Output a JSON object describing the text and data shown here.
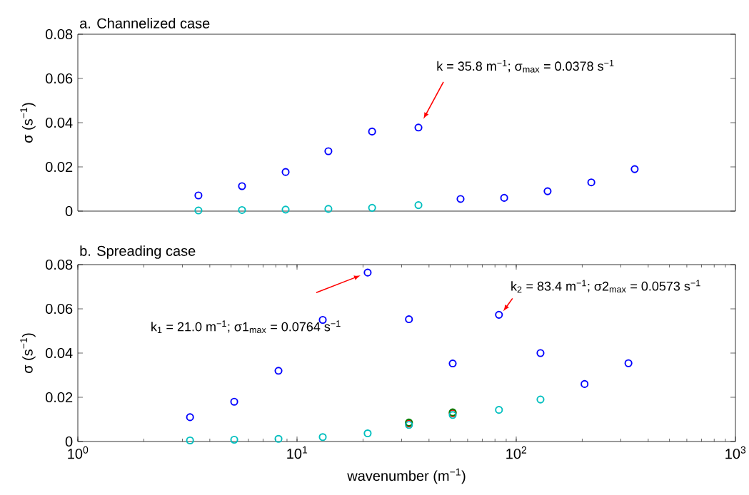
{
  "chart_data": [
    {
      "type": "scatter",
      "title": "a. Channelized case",
      "ylabel": "σ (s$^{−1}$)",
      "log": "x",
      "marker": "circle",
      "tick_labels": "y",
      "xlim": [
        1,
        1000
      ],
      "ylim": [
        0,
        0.08
      ],
      "yticks": [
        0,
        0.02,
        0.04,
        0.06,
        0.08
      ],
      "series": [
        {
          "color": "#0000ff",
          "x": [
            3.55,
            5.61,
            8.87,
            13.9,
            22.0,
            35.8,
            55.7,
            88.1,
            139,
            220,
            347
          ],
          "values": [
            0.0071,
            0.0113,
            0.0177,
            0.0271,
            0.036,
            0.0378,
            0.0055,
            0.006,
            0.009,
            0.013,
            0.019
          ]
        },
        {
          "color": "#00bfbf",
          "x": [
            3.55,
            5.61,
            8.87,
            13.9,
            22.0,
            35.8
          ],
          "values": [
            0.0003,
            0.0005,
            0.0007,
            0.001,
            0.0015,
            0.0027
          ]
        }
      ],
      "annotations": [
        "k = 35.8 m$^{−1}$; σ$_{max}$ = 0.0378 s$^{−1}$"
      ]
    },
    {
      "type": "scatter",
      "title": "b. Spreading case",
      "ylabel": "σ (s$^{−1}$)",
      "xlabel": "wavenumber (m$^{−1}$)",
      "log": "x",
      "marker": "circle",
      "xlim": [
        1,
        1000
      ],
      "ylim": [
        0,
        0.08
      ],
      "yticks": [
        0,
        0.02,
        0.04,
        0.06,
        0.08
      ],
      "xticks": [
        {
          "value": 1,
          "label": "10$^{0}$"
        },
        {
          "value": 10,
          "label": "10$^{1}$"
        },
        {
          "value": 100,
          "label": "10$^{2}$"
        },
        {
          "value": 1000,
          "label": "10$^{3}$"
        }
      ],
      "series": [
        {
          "color": "#0000ff",
          "x": [
            3.25,
            5.17,
            8.23,
            13.1,
            21.0,
            32.4,
            51.3,
            83.4,
            129,
            205,
            325
          ],
          "values": [
            0.011,
            0.018,
            0.032,
            0.055,
            0.0764,
            0.0553,
            0.0353,
            0.0573,
            0.04,
            0.026,
            0.0354
          ]
        },
        {
          "color": "#ff0000",
          "x": [
            32.4,
            51.3
          ],
          "values": [
            0.0082,
            0.0128
          ]
        },
        {
          "color": "#008000",
          "x": [
            32.4,
            51.3
          ],
          "values": [
            0.0086,
            0.0132
          ]
        },
        {
          "color": "#00bfbf",
          "x": [
            3.25,
            5.17,
            8.23,
            13.1,
            21.0,
            32.4,
            51.3,
            83.4,
            129
          ],
          "values": [
            0.0005,
            0.0008,
            0.0012,
            0.002,
            0.0037,
            0.0075,
            0.012,
            0.0143,
            0.019
          ]
        }
      ],
      "annotations": [
        "k$_{1}$ = 21.0 m$^{−1}$; σ1$_{max}$ = 0.0764 s$^{−1}$",
        "k$_{2}$ = 83.4 m$^{−1}$; σ2$_{max}$ = 0.0573 s$^{−1}$"
      ]
    }
  ]
}
